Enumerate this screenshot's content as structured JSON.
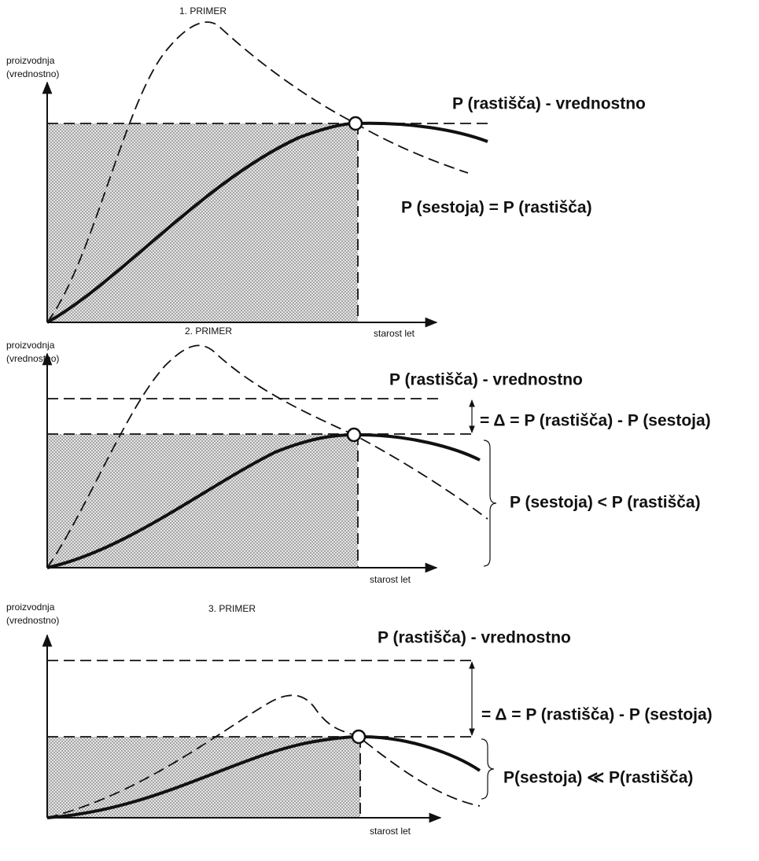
{
  "panels": [
    {
      "title": "1. PRIMER",
      "y_label": [
        "proizvodnja",
        "(vrednostno)"
      ],
      "x_label": "starost let",
      "annotations": [
        "P (rastišča) - vrednostno",
        "P (sestoja) = P (rastišča)"
      ]
    },
    {
      "title": "2. PRIMER",
      "y_label": [
        "proizvodnja",
        "(vrednostno)"
      ],
      "x_label": "starost let",
      "annotations": [
        "P (rastišča) - vrednostno",
        "= Δ = P (rastišča) - P (sestoja)",
        "P (sestoja) < P (rastišča)"
      ]
    },
    {
      "title": "3. PRIMER",
      "y_label": [
        "proizvodnja",
        "(vrednostno)"
      ],
      "x_label": "starost let",
      "annotations": [
        "P (rastišča) - vrednostno",
        "= Δ = P (rastišča) - P (sestoja)",
        "P(sestoja) ≪ P(rastišča)"
      ]
    }
  ]
}
